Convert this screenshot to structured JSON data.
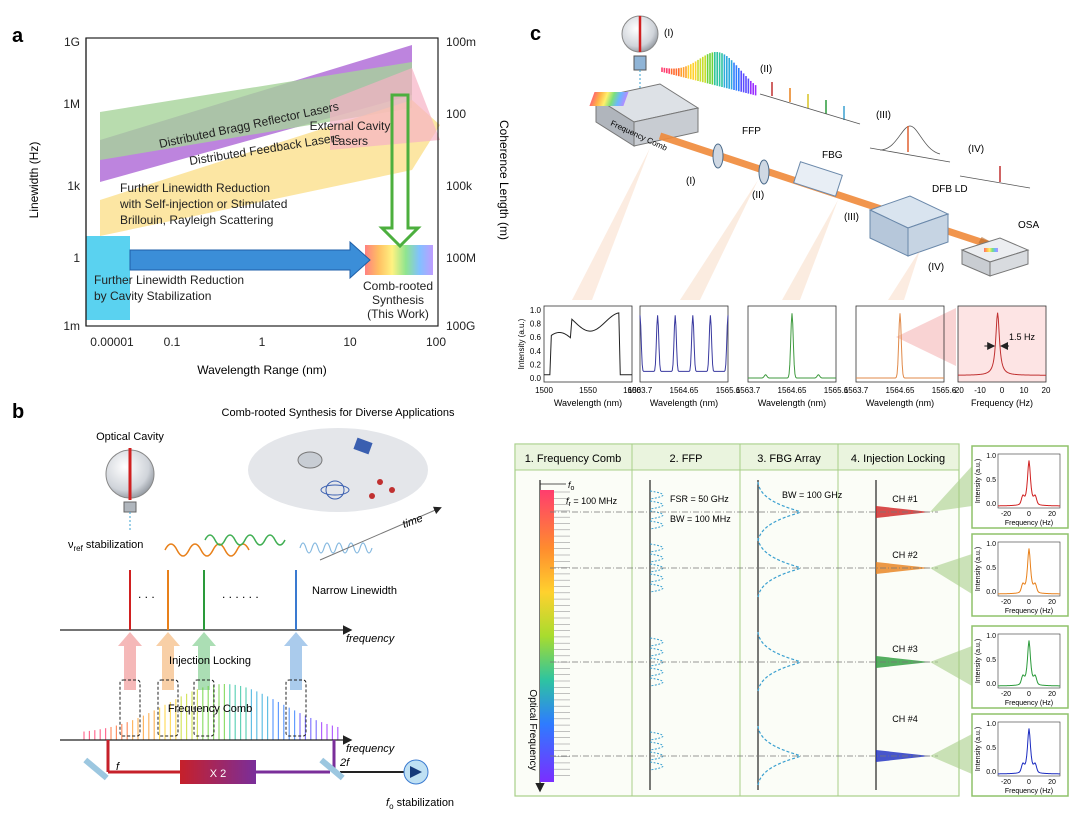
{
  "panels": {
    "a": {
      "letter": "a",
      "y_left_label": "Linewidth (Hz)",
      "y_right_label": "Coherence Length (m)",
      "x_label": "Wavelength Range (nm)",
      "y_left_ticks": [
        "1G",
        "1M",
        "1k",
        "1",
        "1m"
      ],
      "y_right_ticks": [
        "100m",
        "100",
        "100k",
        "100M",
        "100G"
      ],
      "x_ticks": [
        "0.00001",
        "0.1",
        "1",
        "10",
        "100"
      ],
      "regions": {
        "dbr": "Distributed Bragg Reflector Lasers",
        "dfb": "Distributed Feedback Lasers",
        "ecl": [
          "External Cavity",
          "Lasers"
        ],
        "brillouin": [
          "Further Linewidth Reduction",
          "with Self-injection or Stimulated",
          "Brillouin, Rayleigh Scattering"
        ],
        "cavity": [
          "Further Linewidth Reduction",
          "by Cavity Stabilization"
        ],
        "comb": [
          "Comb-rooted",
          "Synthesis",
          "(This Work)"
        ]
      },
      "colors": {
        "dbr": "#b26ed8",
        "dfb": "#a6d39a",
        "ecl": "#f6b2c4",
        "brillouin": "#fbe08c",
        "cavity": "#5ad2f0",
        "blue_arrow": "#3b8ed8",
        "green_arrow": "#4caf3e"
      }
    },
    "b": {
      "letter": "b",
      "title": "Comb-rooted Synthesis for Diverse Applications",
      "optical_cavity": "Optical Cavity",
      "vref": "ν",
      "vref_sub": "ref",
      "vref_rest": " stabilization",
      "narrow": "Narrow Linewidth",
      "frequency": "frequency",
      "time": "time",
      "injection": "Injection Locking",
      "comb": "Frequency Comb",
      "f": "f",
      "x2": "X 2",
      "two_f": "2f",
      "f0": "f",
      "f0_sub": "o",
      "f0_rest": " stabilization",
      "dots": ". . .",
      "dots2": ". . . . . ."
    },
    "c": {
      "letter": "c",
      "labels": {
        "I": "(I)",
        "II": "(II)",
        "III": "(III)",
        "IV": "(IV)"
      },
      "freq_comb": "Frequency Comb",
      "ffp": "FFP",
      "fbg": "FBG",
      "dfb": "DFB LD",
      "osa": "OSA",
      "plots": [
        {
          "ylabel": "Intensity (a.u.)",
          "xlabel": "Wavelength (nm)",
          "xticks": [
            "1500",
            "1550",
            "1600"
          ],
          "yticks": [
            "1.0",
            "0.8",
            "0.6",
            "0.4",
            "0.2",
            "0.0"
          ],
          "color": "#222222"
        },
        {
          "xlabel": "Wavelength (nm)",
          "xticks": [
            "1563.7",
            "1564.65",
            "1565.6"
          ],
          "color": "#3a3aa0"
        },
        {
          "xlabel": "Wavelength (nm)",
          "xticks": [
            "1563.7",
            "1564.65",
            "1565.6"
          ],
          "color": "#3f9a3f"
        },
        {
          "xlabel": "Wavelength (nm)",
          "xticks": [
            "1563.7",
            "1564.65",
            "1565.6"
          ],
          "color": "#e08a4a"
        },
        {
          "xlabel": "Frequency (Hz)",
          "xticks": [
            "-20",
            "-10",
            "0",
            "10",
            "20"
          ],
          "annotation": "1.5 Hz",
          "color": "#c03030"
        }
      ]
    },
    "d": {
      "headers": [
        "1. Frequency Comb",
        "2. FFP",
        "3. FBG Array",
        "4. Injection Locking"
      ],
      "f0": "f",
      "f0_sub": "o",
      "fr": "f",
      "fr_sub": "r",
      "fr_rest": " = 100 MHz",
      "fsr": "FSR = 50 GHz",
      "bw_ffp": "BW = 100 MHz",
      "bw_fbg": "BW = 100 GHz",
      "optical_freq": "Optical Frequency",
      "channels": [
        "CH #1",
        "CH #2",
        "CH #3",
        "CH #4"
      ],
      "channel_colors": [
        "#d02020",
        "#e8801a",
        "#2a9a3a",
        "#1a2ac0"
      ],
      "inset": {
        "ylabel": "Intensity (a.u.)",
        "xlabel": "Frequency (Hz)",
        "xticks": [
          "-20",
          "0",
          "20"
        ],
        "yticks": [
          "1.0",
          "0.5",
          "0.0"
        ]
      }
    }
  }
}
